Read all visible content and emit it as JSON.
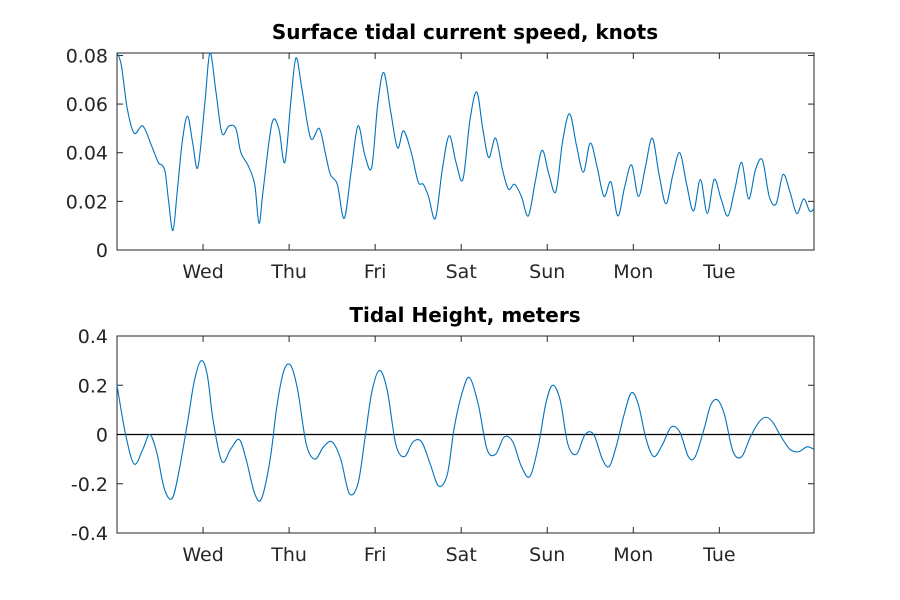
{
  "colors": {
    "series": "#0072bd",
    "axis": "#262626",
    "zero_line": "#000000"
  },
  "chart_data": [
    {
      "type": "line",
      "title": "Surface tidal current speed, knots",
      "xlabel": "",
      "ylabel": "",
      "x_unit": "days",
      "xlim": [
        0,
        8.1
      ],
      "ylim": [
        0,
        0.081
      ],
      "yticks": [
        0,
        0.02,
        0.04,
        0.06,
        0.08
      ],
      "ytick_labels": [
        "0",
        "0.02",
        "0.04",
        "0.06",
        "0.08"
      ],
      "xticks": [
        1,
        2,
        3,
        4,
        5,
        6,
        7
      ],
      "xtick_labels": [
        "Wed",
        "Thu",
        "Fri",
        "Sat",
        "Sun",
        "Mon",
        "Tue"
      ],
      "grid": false,
      "reference_line": null,
      "series": [
        {
          "x": [
            0,
            0.05,
            0.12,
            0.2,
            0.3,
            0.4,
            0.48,
            0.52,
            0.56,
            0.6,
            0.65,
            0.7,
            0.76,
            0.82,
            0.88,
            0.94,
            1.02,
            1.08,
            1.15,
            1.22,
            1.3,
            1.38,
            1.44,
            1.52,
            1.6,
            1.65,
            1.7,
            1.8,
            1.88,
            1.95,
            2.02,
            2.08,
            2.15,
            2.25,
            2.35,
            2.42,
            2.48,
            2.56,
            2.64,
            2.72,
            2.8,
            2.88,
            2.96,
            3.03,
            3.1,
            3.18,
            3.26,
            3.33,
            3.42,
            3.5,
            3.56,
            3.62,
            3.7,
            3.78,
            3.86,
            3.94,
            4.02,
            4.1,
            4.18,
            4.25,
            4.32,
            4.4,
            4.48,
            4.55,
            4.62,
            4.7,
            4.78,
            4.86,
            4.94,
            5.02,
            5.1,
            5.18,
            5.26,
            5.34,
            5.42,
            5.5,
            5.58,
            5.66,
            5.74,
            5.82,
            5.9,
            5.98,
            6.06,
            6.14,
            6.22,
            6.3,
            6.38,
            6.46,
            6.54,
            6.62,
            6.7,
            6.78,
            6.86,
            6.94,
            7.02,
            7.1,
            7.18,
            7.26,
            7.34,
            7.42,
            7.5,
            7.58,
            7.66,
            7.74,
            7.82,
            7.9,
            7.98,
            8.05,
            8.1
          ],
          "values": [
            0.081,
            0.076,
            0.058,
            0.048,
            0.051,
            0.043,
            0.036,
            0.035,
            0.032,
            0.02,
            0.008,
            0.024,
            0.045,
            0.055,
            0.044,
            0.034,
            0.06,
            0.081,
            0.065,
            0.048,
            0.051,
            0.05,
            0.04,
            0.035,
            0.027,
            0.011,
            0.025,
            0.052,
            0.05,
            0.036,
            0.061,
            0.079,
            0.066,
            0.046,
            0.05,
            0.04,
            0.031,
            0.027,
            0.013,
            0.032,
            0.051,
            0.039,
            0.034,
            0.06,
            0.073,
            0.057,
            0.042,
            0.049,
            0.04,
            0.028,
            0.027,
            0.022,
            0.013,
            0.033,
            0.047,
            0.036,
            0.029,
            0.053,
            0.065,
            0.05,
            0.038,
            0.046,
            0.033,
            0.025,
            0.027,
            0.022,
            0.014,
            0.028,
            0.041,
            0.031,
            0.024,
            0.045,
            0.056,
            0.043,
            0.032,
            0.044,
            0.034,
            0.022,
            0.028,
            0.014,
            0.026,
            0.035,
            0.022,
            0.034,
            0.046,
            0.031,
            0.019,
            0.031,
            0.04,
            0.027,
            0.016,
            0.029,
            0.015,
            0.029,
            0.021,
            0.014,
            0.025,
            0.036,
            0.021,
            0.033,
            0.037,
            0.022,
            0.019,
            0.031,
            0.024,
            0.015,
            0.021,
            0.016,
            0.017
          ]
        }
      ]
    },
    {
      "type": "line",
      "title": "Tidal Height, meters",
      "xlabel": "",
      "ylabel": "",
      "x_unit": "days",
      "xlim": [
        0,
        8.1
      ],
      "ylim": [
        -0.4,
        0.4
      ],
      "yticks": [
        -0.4,
        -0.2,
        0,
        0.2,
        0.4
      ],
      "ytick_labels": [
        "-0.4",
        "-0.2",
        "0",
        "0.2",
        "0.4"
      ],
      "xticks": [
        1,
        2,
        3,
        4,
        5,
        6,
        7
      ],
      "xtick_labels": [
        "Wed",
        "Thu",
        "Fri",
        "Sat",
        "Sun",
        "Mon",
        "Tue"
      ],
      "grid": false,
      "reference_line": 0,
      "series": [
        {
          "x": [
            0,
            0.1,
            0.2,
            0.3,
            0.38,
            0.46,
            0.55,
            0.64,
            0.72,
            0.82,
            0.9,
            0.98,
            1.05,
            1.12,
            1.22,
            1.32,
            1.42,
            1.5,
            1.6,
            1.68,
            1.78,
            1.86,
            1.94,
            2.02,
            2.1,
            2.2,
            2.3,
            2.4,
            2.5,
            2.6,
            2.7,
            2.8,
            2.88,
            2.96,
            3.05,
            3.14,
            3.24,
            3.34,
            3.44,
            3.54,
            3.64,
            3.74,
            3.84,
            3.92,
            4.02,
            4.1,
            4.2,
            4.3,
            4.4,
            4.5,
            4.6,
            4.7,
            4.8,
            4.9,
            4.98,
            5.06,
            5.15,
            5.24,
            5.34,
            5.44,
            5.54,
            5.64,
            5.72,
            5.8,
            5.9,
            5.98,
            6.06,
            6.15,
            6.24,
            6.34,
            6.44,
            6.54,
            6.64,
            6.72,
            6.82,
            6.9,
            6.98,
            7.06,
            7.16,
            7.26,
            7.36,
            7.46,
            7.54,
            7.62,
            7.72,
            7.82,
            7.92,
            8.02,
            8.1
          ],
          "values": [
            0.2,
            0.0,
            -0.12,
            -0.06,
            0.0,
            -0.07,
            -0.22,
            -0.26,
            -0.15,
            0.05,
            0.22,
            0.3,
            0.24,
            0.05,
            -0.11,
            -0.06,
            -0.02,
            -0.1,
            -0.24,
            -0.26,
            -0.1,
            0.12,
            0.26,
            0.28,
            0.18,
            -0.04,
            -0.1,
            -0.05,
            -0.03,
            -0.1,
            -0.24,
            -0.2,
            -0.02,
            0.17,
            0.26,
            0.18,
            -0.04,
            -0.09,
            -0.03,
            -0.03,
            -0.12,
            -0.21,
            -0.16,
            0.03,
            0.18,
            0.23,
            0.12,
            -0.06,
            -0.08,
            -0.01,
            -0.03,
            -0.13,
            -0.17,
            -0.04,
            0.12,
            0.2,
            0.14,
            -0.04,
            -0.08,
            0.0,
            0.0,
            -0.1,
            -0.13,
            -0.05,
            0.09,
            0.17,
            0.12,
            -0.02,
            -0.09,
            -0.04,
            0.03,
            0.01,
            -0.09,
            -0.09,
            0.02,
            0.12,
            0.14,
            0.08,
            -0.07,
            -0.09,
            -0.01,
            0.05,
            0.07,
            0.05,
            -0.01,
            -0.06,
            -0.07,
            -0.05,
            -0.06
          ]
        }
      ]
    }
  ]
}
